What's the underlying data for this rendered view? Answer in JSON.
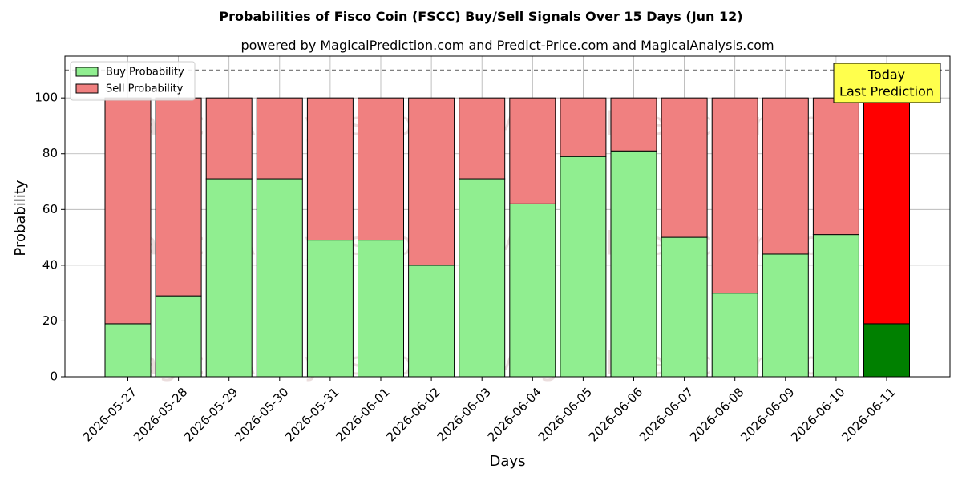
{
  "chart_data": {
    "type": "bar",
    "stacked": true,
    "title": "Probabilities of Fisco Coin (FSCC) Buy/Sell Signals Over 15 Days (Jun 12)",
    "subtitle": "powered by MagicalPrediction.com and Predict-Price.com and MagicalAnalysis.com",
    "xlabel": "Days",
    "ylabel": "Probability",
    "ylim": [
      0,
      115
    ],
    "yticks": [
      0,
      20,
      40,
      60,
      80,
      100
    ],
    "reference_line": 110,
    "grid": true,
    "legend_position": "top-left",
    "categories": [
      "2026-05-27",
      "2026-05-28",
      "2026-05-29",
      "2026-05-30",
      "2026-05-31",
      "2026-06-01",
      "2026-06-02",
      "2026-06-03",
      "2026-06-04",
      "2026-06-05",
      "2026-06-06",
      "2026-06-07",
      "2026-06-08",
      "2026-06-09",
      "2026-06-10",
      "2026-06-11"
    ],
    "series": [
      {
        "name": "Buy Probability",
        "color": "#90ee90",
        "values": [
          19,
          29,
          71,
          71,
          49,
          49,
          40,
          71,
          62,
          79,
          81,
          50,
          30,
          44,
          51,
          19
        ]
      },
      {
        "name": "Sell Probability",
        "color": "#f08080",
        "values": [
          81,
          71,
          29,
          29,
          51,
          51,
          60,
          29,
          38,
          21,
          19,
          50,
          70,
          56,
          49,
          81
        ]
      }
    ],
    "highlight": {
      "index": 15,
      "buy_color": "#008000",
      "sell_color": "#ff0000"
    },
    "annotation": {
      "lines": [
        "Today",
        "Last Prediction"
      ],
      "background": "#ffff4d"
    },
    "watermarks": [
      "MagicalAnalysis.com",
      "MagicalPrediction.com"
    ]
  }
}
